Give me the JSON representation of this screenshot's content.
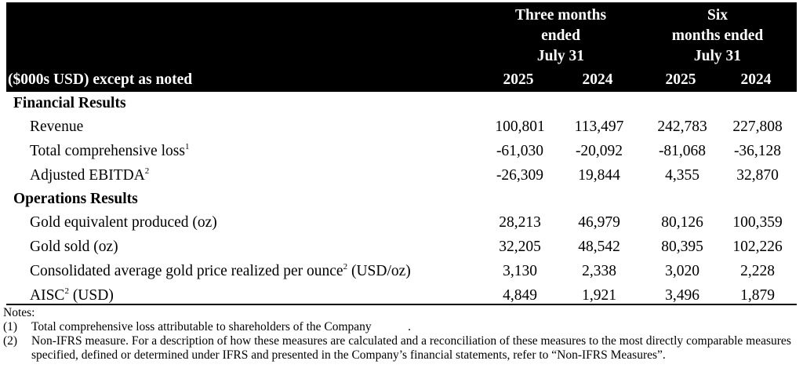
{
  "header": {
    "unit_label": "($000s USD) except as noted",
    "group1": {
      "line1": "Three months",
      "line2": "ended",
      "line3": "July 31"
    },
    "group2": {
      "line1": "Six",
      "line2": "months ended",
      "line3": "July 31"
    },
    "years": [
      "2025",
      "2024",
      "2025",
      "2024"
    ]
  },
  "sections": [
    {
      "title": "Financial Results",
      "rows": [
        {
          "label": "Revenue",
          "sup": "",
          "values": [
            "100,801",
            "113,497",
            "242,783",
            "227,808"
          ]
        },
        {
          "label": "Total comprehensive loss",
          "sup": "1",
          "values": [
            "-61,030",
            "-20,092",
            "-81,068",
            "-36,128"
          ]
        },
        {
          "label": "Adjusted EBITDA",
          "sup": "2",
          "values": [
            "-26,309",
            "19,844",
            "4,355",
            "32,870"
          ]
        }
      ]
    },
    {
      "title": "Operations Results",
      "rows": [
        {
          "label": "Gold equivalent produced (oz)",
          "sup": "",
          "values": [
            "28,213",
            "46,979",
            "80,126",
            "100,359"
          ]
        },
        {
          "label": "Gold sold (oz)",
          "sup": "",
          "values": [
            "32,205",
            "48,542",
            "80,395",
            "102,226"
          ]
        },
        {
          "label": "Consolidated average gold price realized per ounce",
          "sup": "2",
          "suffix": " (USD/oz)",
          "values": [
            "3,130",
            "2,338",
            "3,020",
            "2,228"
          ]
        },
        {
          "label": "AISC",
          "sup": "2",
          "suffix": " (USD)",
          "values": [
            "4,849",
            "1,921",
            "3,496",
            "1,879"
          ]
        }
      ]
    }
  ],
  "notes": {
    "title": "Notes:",
    "items": [
      {
        "num": "(1)",
        "text": "Total comprehensive loss attributable to shareholders of the Company            ."
      },
      {
        "num": "(2)",
        "text": "Non-IFRS measure. For a description of how these measures are calculated and a reconciliation of these measures to the most directly comparable measures specified, defined or determined under IFRS and presented in the Company’s financial statements, refer to “Non-IFRS Measures”."
      }
    ]
  }
}
